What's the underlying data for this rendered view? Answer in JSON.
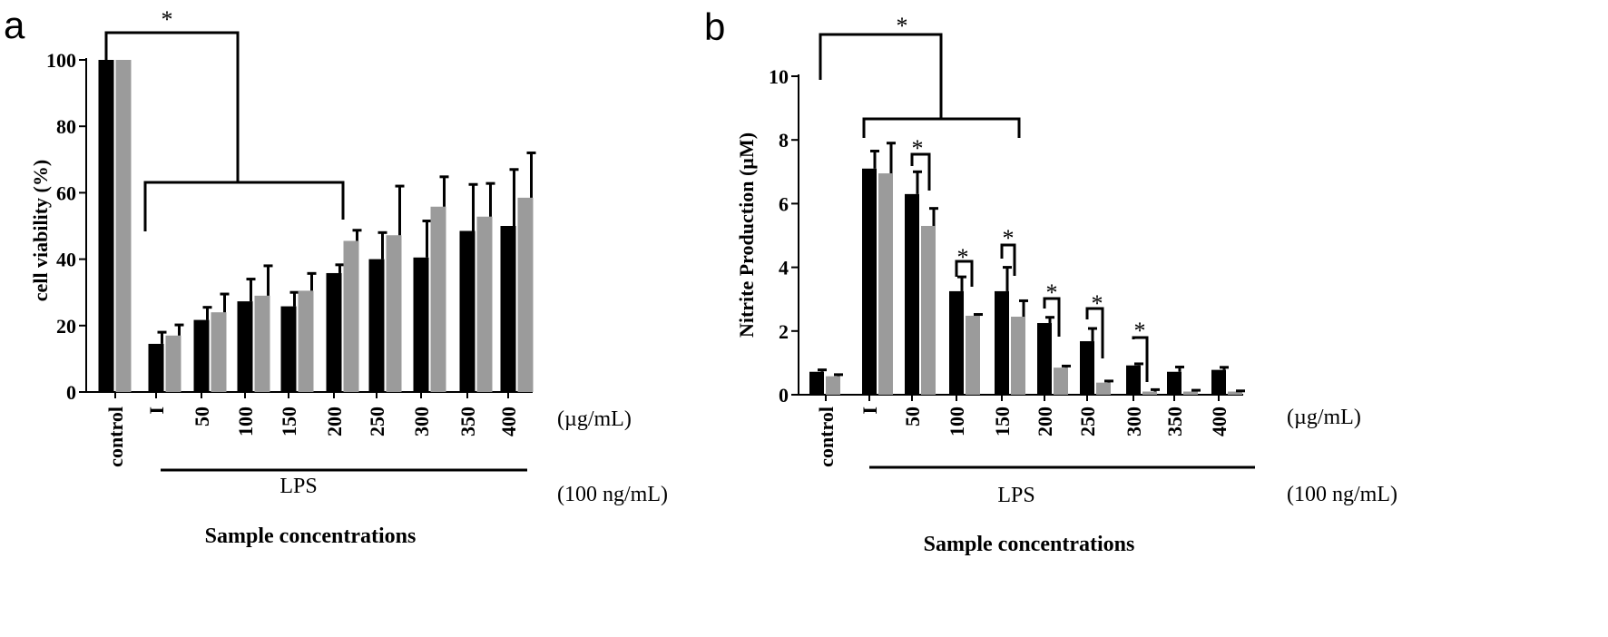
{
  "chart_data": [
    {
      "panel": "a",
      "type": "bar",
      "ylabel": "cell viability (%)",
      "xlabel": "Sample concentrations",
      "ylim": [
        0,
        100
      ],
      "yticks": [
        "0",
        "20",
        "40",
        "60",
        "80",
        "100"
      ],
      "categories": [
        "control",
        "I",
        "50",
        "100",
        "150",
        "200",
        "250",
        "300",
        "350",
        "400"
      ],
      "unit_note": "(µg/mL)",
      "treatment_label": "LPS",
      "treatment_note": "(100 ng/mL)",
      "series": [
        {
          "color": "#000000",
          "values": [
            100,
            14.5,
            21.7,
            27.3,
            25.8,
            35.8,
            40,
            40.5,
            48.5,
            50
          ],
          "errors": [
            0,
            3.5,
            3.8,
            6.7,
            4.2,
            2.5,
            8,
            11,
            14,
            17
          ]
        },
        {
          "color": "#9b9b9b",
          "values": [
            100,
            17,
            24,
            29,
            30.5,
            45.5,
            47.2,
            55.8,
            52.8,
            58.5
          ],
          "errors": [
            0,
            3.2,
            5.5,
            9,
            5.2,
            3.2,
            14.8,
            9,
            10,
            13.5
          ]
        }
      ],
      "annotations": [
        "*"
      ],
      "grid": false,
      "legend": "none"
    },
    {
      "panel": "b",
      "type": "bar",
      "ylabel": "Nitrite Production (µM)",
      "xlabel": "Sample concentrations",
      "ylim": [
        0,
        10
      ],
      "yticks": [
        "0",
        "2",
        "4",
        "6",
        "8",
        "10"
      ],
      "categories": [
        "control",
        "I",
        "50",
        "100",
        "150",
        "200",
        "250",
        "300",
        "350",
        "400"
      ],
      "unit_note": "(µg/mL)",
      "treatment_label": "LPS",
      "treatment_note": "(100 ng/mL)",
      "series": [
        {
          "color": "#000000",
          "values": [
            0.72,
            7.1,
            6.3,
            3.25,
            3.25,
            2.25,
            1.68,
            0.92,
            0.72,
            0.78
          ],
          "errors": [
            0.06,
            0.55,
            0.7,
            0.45,
            0.75,
            0.18,
            0.4,
            0.05,
            0.15,
            0.08
          ]
        },
        {
          "color": "#9b9b9b",
          "values": [
            0.58,
            6.95,
            5.3,
            2.48,
            2.45,
            0.85,
            0.38,
            0.1,
            0.1,
            0.1
          ],
          "errors": [
            0.05,
            0.95,
            0.55,
            0.04,
            0.5,
            0.05,
            0.05,
            0.06,
            0.04,
            0.02
          ]
        }
      ],
      "annotations": [
        "*"
      ],
      "grid": false,
      "legend": "none"
    }
  ]
}
